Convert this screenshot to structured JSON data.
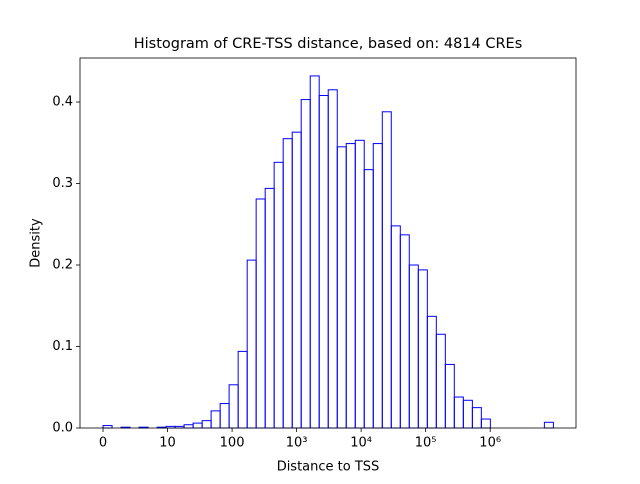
{
  "chart_data": {
    "type": "histogram",
    "title": "Histogram of CRE-TSS distance, based on: 4814 CREs",
    "xlabel": "Distance to TSS",
    "ylabel": "Density",
    "color": "#0000ff",
    "bins": [
      0,
      0.14,
      0.279,
      0.419,
      0.558,
      0.698,
      0.838,
      0.977,
      1.117,
      1.256,
      1.396,
      1.536,
      1.675,
      1.815,
      1.954,
      2.094,
      2.234,
      2.373,
      2.513,
      2.652,
      2.792,
      2.932,
      3.071,
      3.211,
      3.35,
      3.49,
      3.63,
      3.769,
      3.909,
      4.048,
      4.188,
      4.328,
      4.467,
      4.607,
      4.746,
      4.886,
      5.026,
      5.165,
      5.305,
      5.444,
      5.584,
      5.724,
      5.863,
      6.003,
      6.142,
      6.282,
      6.422,
      6.561,
      6.701,
      6.84,
      6.98
    ],
    "values": [
      0.003,
      0,
      0.001,
      0,
      0.001,
      0,
      0.001,
      0.002,
      0.002,
      0.004,
      0.006,
      0.009,
      0.021,
      0.03,
      0.053,
      0.094,
      0.206,
      0.281,
      0.294,
      0.326,
      0.355,
      0.363,
      0.403,
      0.432,
      0.408,
      0.415,
      0.345,
      0.349,
      0.353,
      0.317,
      0.349,
      0.388,
      0.248,
      0.237,
      0.2,
      0.194,
      0.137,
      0.115,
      0.078,
      0.038,
      0.034,
      0.025,
      0.011,
      0,
      0,
      0,
      0,
      0,
      0,
      0.007
    ],
    "xlim": [
      -0.357,
      7.33
    ],
    "ylim": [
      0,
      0.454
    ],
    "xticks": [
      0,
      {
        "value": 1,
        "label": "10"
      },
      {
        "value": 2,
        "label": "100"
      },
      {
        "value": 3,
        "label": "10³"
      },
      {
        "value": 4,
        "label": "10⁴"
      },
      {
        "value": 5,
        "label": "10⁵"
      },
      {
        "value": 6,
        "label": "10⁶"
      }
    ],
    "yticks": [
      {
        "value": 0,
        "label": "0.0"
      },
      0.1,
      0.2,
      0.3,
      0.4
    ]
  }
}
